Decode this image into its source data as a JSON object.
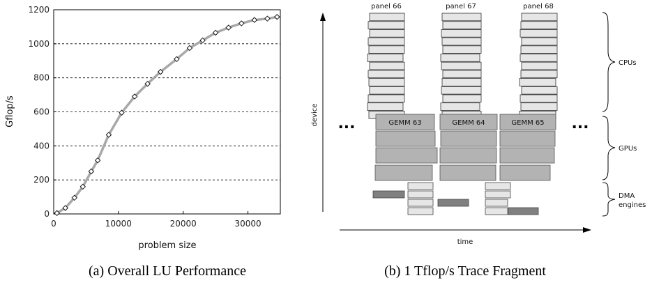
{
  "chart_data": [
    {
      "type": "line",
      "caption": "(a) Overall LU Performance",
      "xlabel": "problem size",
      "ylabel": "Gflop/s",
      "xlim": [
        0,
        35000
      ],
      "ylim": [
        0,
        1200
      ],
      "xticks": [
        0,
        10000,
        20000,
        30000
      ],
      "yticks": [
        0,
        200,
        400,
        600,
        800,
        1000,
        1200
      ],
      "grid": "horizontal dashed",
      "series": [
        {
          "x": [
            500,
            1800,
            3200,
            4500,
            5800,
            6800,
            8500,
            10500,
            12500,
            14500,
            16500,
            19000,
            21000,
            23000,
            25000,
            27000,
            29000,
            31000,
            33000,
            34500
          ],
          "y": [
            5,
            35,
            95,
            160,
            250,
            315,
            465,
            595,
            690,
            765,
            835,
            910,
            975,
            1020,
            1065,
            1095,
            1120,
            1140,
            1148,
            1158
          ]
        }
      ]
    },
    {
      "type": "diagram",
      "caption": "(b) 1 Tflop/s Trace Fragment",
      "xlabel": "time",
      "ylabel": "device",
      "panel_labels": [
        "panel 66",
        "panel 67",
        "panel 68"
      ],
      "gemm_labels": [
        "GEMM 63",
        "GEMM 64",
        "GEMM 65"
      ],
      "ellipsis": "...",
      "groups": [
        "CPUs",
        "GPUs",
        "DMA",
        "engines"
      ],
      "colors": {
        "cpu_box": "#e6e6e6",
        "gpu_box": "#b3b3b3",
        "dma_dark": "#808080",
        "line": "#999999"
      }
    }
  ]
}
